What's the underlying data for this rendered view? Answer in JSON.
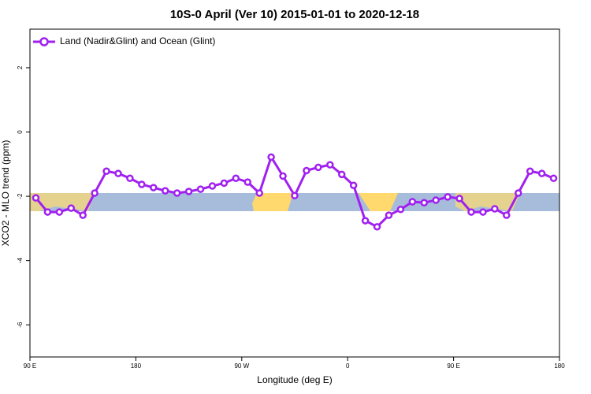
{
  "chart_data": {
    "type": "line",
    "title": "10S-0 April (Ver 10)   2015-01-01 to 2020-12-18",
    "x_label": "Longitude (deg E)",
    "y_label": "XCO2 - MLO trend (ppm)",
    "x": [
      95,
      105,
      115,
      125,
      135,
      145,
      155,
      165,
      175,
      185,
      195,
      205,
      215,
      225,
      235,
      245,
      255,
      265,
      275,
      285,
      295,
      305,
      315,
      325,
      335,
      345,
      355,
      365,
      375,
      385,
      395,
      405,
      415,
      425,
      435,
      445,
      455,
      465,
      475,
      485,
      495,
      505,
      515,
      525,
      535
    ],
    "series": [
      {
        "name": "Land (Nadir&Glint) and Ocean (Glint)",
        "color": "#a020f0",
        "values": [
          -2.05,
          -2.49,
          -2.49,
          -2.37,
          -2.59,
          -1.9,
          -1.22,
          -1.29,
          -1.44,
          -1.63,
          -1.73,
          -1.83,
          -1.9,
          -1.85,
          -1.78,
          -1.68,
          -1.59,
          -1.44,
          -1.56,
          -1.9,
          -0.78,
          -1.37,
          -1.98,
          -1.2,
          -1.1,
          -1.02,
          -1.32,
          -1.66,
          -2.76,
          -2.95,
          -2.59,
          -2.41,
          -2.17,
          -2.2,
          -2.12,
          -2.02,
          -2.07,
          -2.49,
          -2.49,
          -2.39,
          -2.59,
          -1.9,
          -1.22,
          -1.29,
          -1.44
        ]
      }
    ],
    "xlim": [
      90,
      540
    ],
    "xticks": [
      {
        "value": 90,
        "label": "90 E"
      },
      180,
      {
        "value": 270,
        "label": "90 W"
      },
      {
        "value": 360,
        "label": "0"
      },
      {
        "value": 450,
        "label": "90 E"
      },
      {
        "value": 540,
        "label": "180"
      }
    ],
    "ylim": [
      -7,
      3.2
    ],
    "yticks": [
      -6,
      -4,
      -2,
      0,
      2
    ],
    "legend": "top-left"
  }
}
